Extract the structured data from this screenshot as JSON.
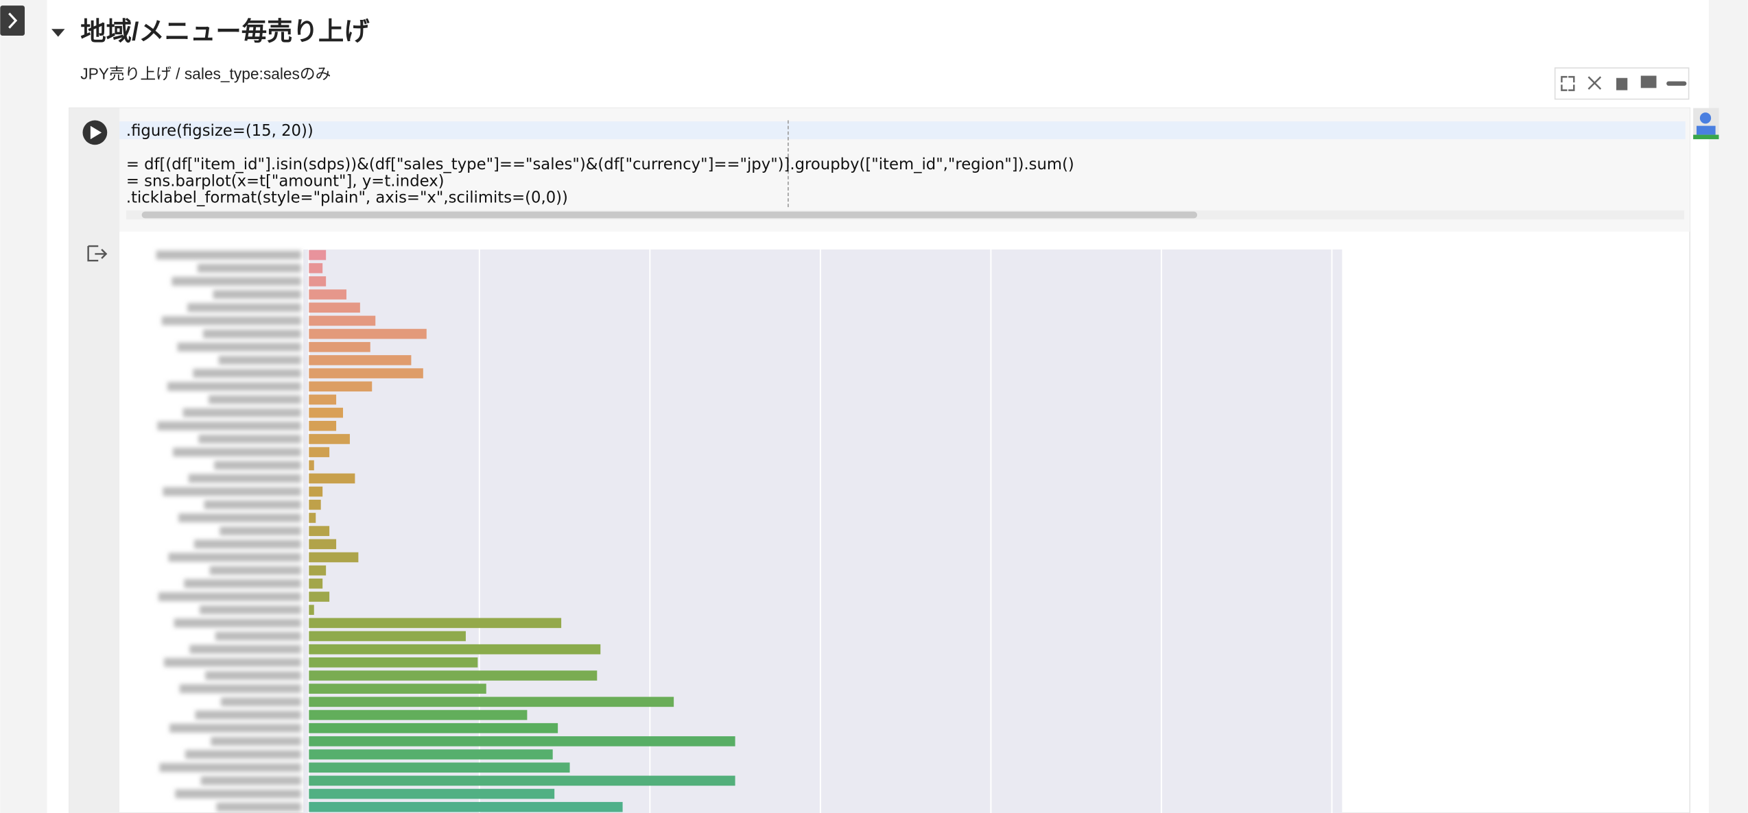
{
  "header": {
    "title": "地域/メニュー毎売り上げ",
    "subtitle": "JPY売り上げ / sales_type:salesのみ"
  },
  "code": {
    "lines": [
      ".figure(figsize=(15, 20))",
      "= df[(df[\"item_id\"].isin(sdps))&(df[\"sales_type\"]==\"sales\")&(df[\"currency\"]==\"jpy\")].groupby([\"item_id\",\"region\"]).sum()",
      "= sns.barplot(x=t[\"amount\"], y=t.index)",
      ".ticklabel_format(style=\"plain\",  axis=\"x\",scilimits=(0,0))"
    ]
  },
  "chart_data": {
    "type": "barh",
    "categories": [
      null,
      null,
      null,
      null,
      null,
      null,
      null,
      null,
      null,
      null,
      null,
      null,
      null,
      null,
      null,
      null,
      null,
      null,
      null,
      null,
      null,
      null,
      null,
      null,
      null,
      null,
      null,
      null,
      null,
      null,
      null,
      null,
      null,
      null,
      null,
      null,
      null,
      null,
      null,
      null,
      null,
      null,
      null
    ],
    "values": [
      10,
      8,
      10,
      22,
      30,
      39,
      69,
      36,
      60,
      67,
      37,
      16,
      20,
      16,
      24,
      12,
      3,
      27,
      8,
      7,
      4,
      12,
      16,
      29,
      10,
      8,
      12,
      3,
      148,
      92,
      171,
      99,
      169,
      104,
      214,
      128,
      146,
      250,
      143,
      153,
      250,
      144,
      184
    ],
    "palette": [
      "#e8939c",
      "#e39a7a",
      "#d9a057",
      "#c4a04a",
      "#a8a54a",
      "#8aab4c",
      "#5aae5e",
      "#4fb08a"
    ],
    "xlim": [
      0,
      606
    ],
    "xticks": [
      0,
      100,
      200,
      300,
      400,
      500,
      600
    ],
    "grid": true
  }
}
